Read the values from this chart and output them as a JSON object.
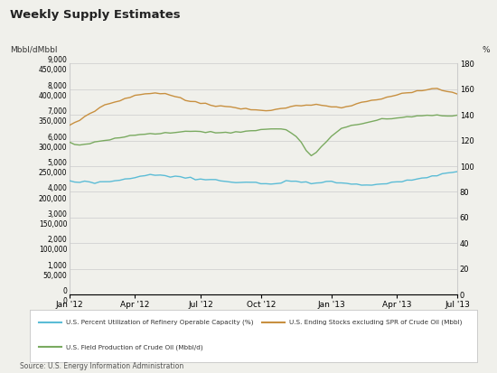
{
  "title": "Weekly Supply Estimates",
  "ylabel_left": "Mbbl/dMbbl",
  "ylabel_right": "%",
  "source": "Source: U.S. Energy Information Administration",
  "left_yticks": [
    0,
    1000,
    2000,
    3000,
    4000,
    5000,
    6000,
    7000,
    8000,
    9000
  ],
  "left_yticks2": [
    0,
    50000,
    100000,
    150000,
    200000,
    250000,
    300000,
    350000,
    400000,
    450000
  ],
  "right_yticks": [
    0,
    20,
    40,
    60,
    80,
    100,
    120,
    140,
    160,
    180
  ],
  "xtick_labels": [
    "Jan '12",
    "Apr '12",
    "Jul '12",
    "Oct '12",
    "Jan '13",
    "Apr '13",
    "Jul '13"
  ],
  "xtick_positions": [
    0,
    13,
    26,
    38,
    52,
    65,
    77
  ],
  "color_blue": "#5bbcd6",
  "color_orange": "#c89040",
  "color_green": "#7aaa60",
  "legend_labels": [
    "U.S. Percent Utilization of Refinery Operable Capacity (%)",
    "U.S. Ending Stocks excluding SPR of Crude Oil (Mbbl)",
    "U.S. Field Production of Crude Oil (Mbbl/d)"
  ],
  "bg_color": "#f0f0eb",
  "plot_bg": "#f0f0eb",
  "grid_color": "#cccccc",
  "n_points": 78
}
